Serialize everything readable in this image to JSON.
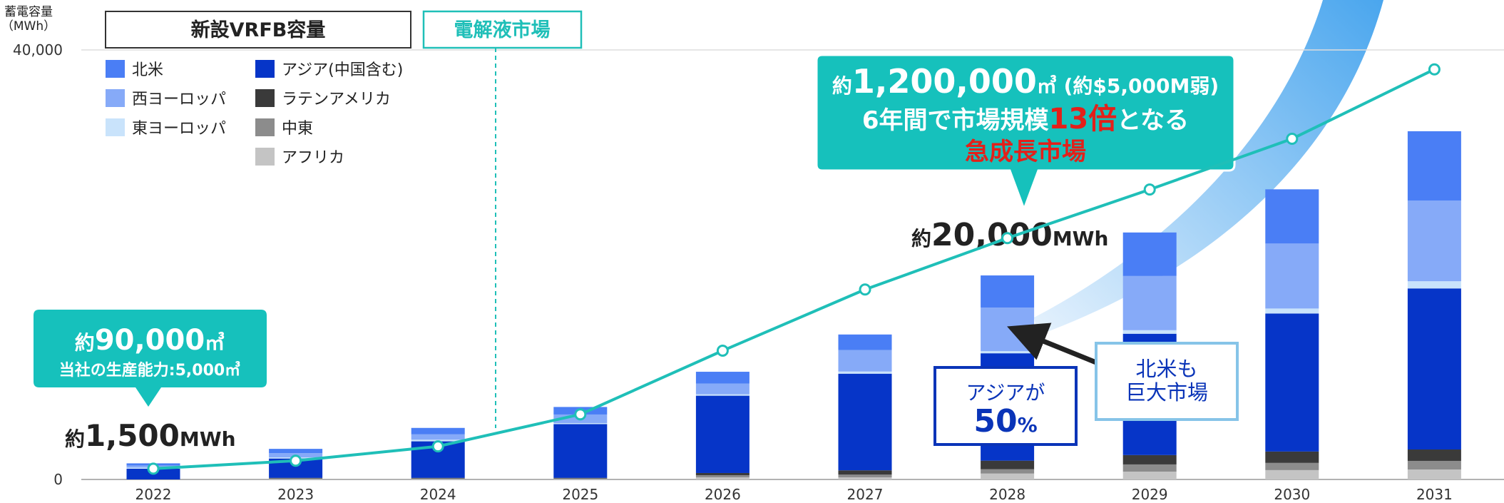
{
  "chart_data": {
    "type": "bar",
    "stacked": true,
    "y_label": [
      "蓄電容量",
      "（MWh）"
    ],
    "bar_group_label": "新設VRFB容量",
    "categories": [
      "2022",
      "2023",
      "2024",
      "2025",
      "2026",
      "2027",
      "2028",
      "2029",
      "2030",
      "2031"
    ],
    "ylim": [
      0,
      40000
    ],
    "yticks": [
      0,
      {
        "value": 40000,
        "label": "40,000"
      }
    ],
    "y2lim": [
      60000,
      1254000
    ],
    "grid": true,
    "series": [
      {
        "name": "アフリカ",
        "color": "#c4c4c4",
        "values": [
          0,
          50,
          50,
          50,
          200,
          200,
          550,
          730,
          870,
          930
        ]
      },
      {
        "name": "中東",
        "color": "#8c8c8c",
        "values": [
          0,
          50,
          50,
          50,
          200,
          250,
          400,
          670,
          670,
          800
        ]
      },
      {
        "name": "ラテンアメリカ",
        "color": "#3a3a3a",
        "values": [
          0,
          50,
          50,
          50,
          200,
          400,
          800,
          870,
          1060,
          1060
        ]
      },
      {
        "name": "アジア(中国含む)",
        "color": "#0635c8",
        "values": [
          1000,
          1800,
          3400,
          5000,
          7200,
          9000,
          10000,
          11300,
          12850,
          15000
        ]
      },
      {
        "name": "東ヨーロッパ",
        "color": "#c9e3fb",
        "values": [
          100,
          100,
          150,
          100,
          130,
          200,
          200,
          330,
          470,
          670
        ]
      },
      {
        "name": "西ヨーロッパ",
        "color": "#86aaf8",
        "values": [
          200,
          400,
          500,
          800,
          1000,
          2000,
          4050,
          5050,
          6050,
          7520
        ]
      },
      {
        "name": "北米",
        "color": "#4a7ef5",
        "values": [
          200,
          400,
          600,
          700,
          1100,
          1450,
          3000,
          4050,
          5050,
          6450
        ]
      },
      {
        "name": "電解液市場",
        "type": "line",
        "axis": "y2",
        "color": "#1fbfb8",
        "values": [
          90000,
          112000,
          152000,
          241000,
          418000,
          588000,
          731000,
          866000,
          1007000,
          1200000
        ]
      }
    ],
    "annotations": [
      {
        "lines": [
          [
            "約",
            "1,200,000",
            "㎥ (約$5,000M弱)"
          ],
          [
            "6年間で市場規模",
            "13倍",
            "となる"
          ],
          [
            "急成長市場"
          ]
        ]
      },
      {
        "lines": [
          [
            "約",
            "20,000",
            "MWh"
          ]
        ]
      },
      {
        "lines": [
          [
            "約",
            "90,000",
            "㎥"
          ],
          [
            "当社の生産能力:5,000㎥"
          ]
        ]
      },
      {
        "lines": [
          [
            "約",
            "1,500",
            "MWh"
          ]
        ]
      },
      {
        "lines": [
          [
            "アジアが"
          ],
          [
            "50",
            "%"
          ]
        ]
      },
      {
        "lines": [
          [
            "北米も"
          ],
          [
            "巨大市場"
          ]
        ]
      }
    ]
  }
}
